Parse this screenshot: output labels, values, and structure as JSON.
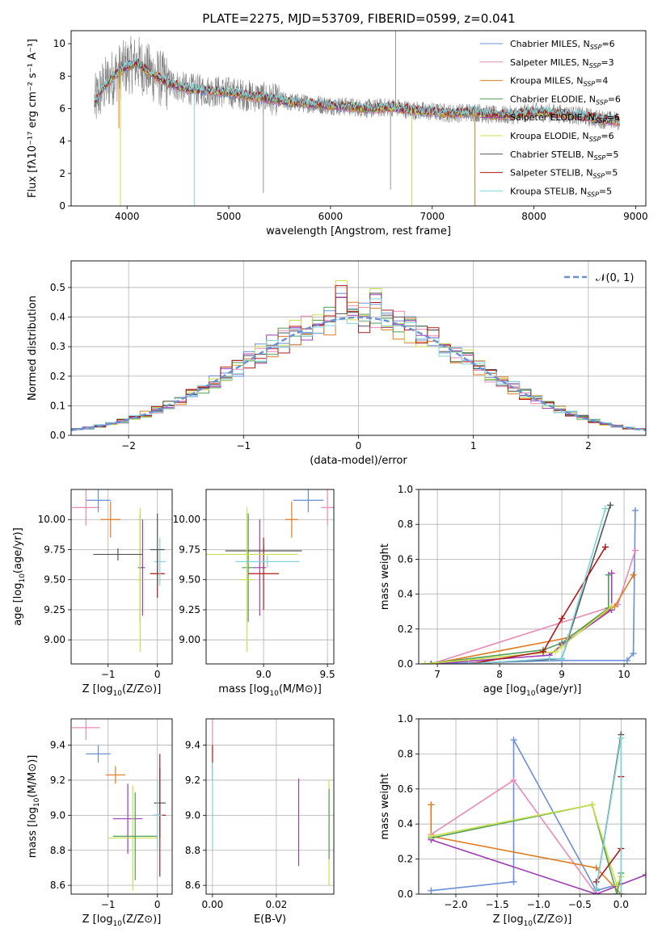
{
  "colors": {
    "chabrier_miles": "#6a8fd8",
    "salpeter_miles": "#e88ab6",
    "kroupa_miles": "#e07b20",
    "chabrier_elodie": "#4d9e57",
    "salpeter_elodie": "#a03cb8",
    "kroupa_elodie": "#c8e04a",
    "chabrier_stelib": "#555555",
    "salpeter_stelib": "#b01a1a",
    "kroupa_stelib": "#7fd4dc",
    "spectrum": "#808080"
  },
  "chart_data": [
    {
      "id": "spectrum",
      "type": "line",
      "title": "PLATE=2275, MJD=53709, FIBERID=0599, z=0.041",
      "xlabel": "wavelength [Angstrom, rest frame]",
      "ylabel": "Flux [fλ10⁻¹⁷ erg cm⁻² s⁻¹ A⁻¹]",
      "xlim": [
        3450,
        9100
      ],
      "ylim": [
        0,
        10.8
      ],
      "xticks": [
        "4000",
        "5000",
        "6000",
        "7000",
        "8000",
        "9000"
      ],
      "yticks": [
        "0",
        "2",
        "4",
        "6",
        "8",
        "10"
      ],
      "legend_position": "top-right",
      "legend": [
        {
          "base": "Chabrier MILES, N",
          "sub": "SSP",
          "tail": "=6",
          "color_key": "chabrier_miles"
        },
        {
          "base": "Salpeter MILES, N",
          "sub": "SSP",
          "tail": "=3",
          "color_key": "salpeter_miles"
        },
        {
          "base": "Kroupa MILES, N",
          "sub": "SSP",
          "tail": "=4",
          "color_key": "kroupa_miles"
        },
        {
          "base": "Chabrier ELODIE, N",
          "sub": "SSP",
          "tail": "=6",
          "color_key": "chabrier_elodie"
        },
        {
          "base": "Salpeter ELODIE, N",
          "sub": "SSP",
          "tail": "=6",
          "color_key": "salpeter_elodie"
        },
        {
          "base": "Kroupa ELODIE, N",
          "sub": "SSP",
          "tail": "=6",
          "color_key": "kroupa_elodie"
        },
        {
          "base": "Chabrier STELIB, N",
          "sub": "SSP",
          "tail": "=5",
          "color_key": "chabrier_stelib"
        },
        {
          "base": "Salpeter STELIB, N",
          "sub": "SSP",
          "tail": "=5",
          "color_key": "salpeter_stelib"
        },
        {
          "base": "Kroupa STELIB, N",
          "sub": "SSP",
          "tail": "=5",
          "color_key": "kroupa_stelib"
        }
      ],
      "continuum": {
        "x": [
          3680,
          3750,
          3850,
          3950,
          4000,
          4100,
          4200,
          4400,
          4600,
          4800,
          5000,
          5200,
          5400,
          5600,
          5800,
          6000,
          6200,
          6400,
          6600,
          6800,
          7000,
          7200,
          7400,
          7600,
          7800,
          8000,
          8200,
          8400,
          8600,
          8840
        ],
        "y": [
          6.3,
          7.2,
          7.9,
          8.4,
          8.6,
          8.8,
          8.3,
          7.6,
          7.2,
          7.1,
          7.0,
          6.8,
          6.6,
          6.4,
          6.3,
          6.2,
          6.1,
          6.0,
          6.1,
          5.9,
          5.8,
          5.7,
          5.8,
          5.6,
          5.6,
          5.8,
          5.7,
          5.6,
          5.4,
          5.2
        ]
      },
      "dips": [
        {
          "x": 3920,
          "y": 4.8,
          "color_key": "kroupa_miles"
        },
        {
          "x": 3935,
          "y": 0,
          "color_key": "kroupa_elodie"
        },
        {
          "x": 4660,
          "y": 0,
          "color_key": "kroupa_stelib"
        },
        {
          "x": 6800,
          "y": 0,
          "color_key": "kroupa_elodie"
        },
        {
          "x": 7420,
          "y": 0,
          "color_key": "kroupa_miles"
        }
      ],
      "spikes": [
        {
          "x": 5340,
          "y": 0.8
        },
        {
          "x": 6640,
          "y": 10.8
        },
        {
          "x": 6590,
          "y": 1.0
        }
      ]
    },
    {
      "id": "residuals",
      "type": "histogram",
      "xlabel": "(data-model)/error",
      "ylabel": "Normed distribution",
      "xlim": [
        -2.5,
        2.5
      ],
      "ylim": [
        0,
        0.59
      ],
      "xticks": [
        "−2",
        "−1",
        "0",
        "1",
        "2"
      ],
      "yticks": [
        "0.0",
        "0.1",
        "0.2",
        "0.3",
        "0.4",
        "0.5"
      ],
      "legend_position": "top-right",
      "gaussian_label": "𝒩(0, 1)",
      "gaussian_color": "#6a8fd8",
      "bin_width": 0.1
    },
    {
      "id": "age_vs_Z",
      "type": "errorbar",
      "xlabel_base": "Z [log",
      "xlabel_sub": "10",
      "xlabel_tail": "(Z/Z⊙)]",
      "ylabel_base": "age  [log",
      "ylabel_sub": "10",
      "ylabel_tail": "(age/yr)]",
      "xlim": [
        -1.75,
        0.3
      ],
      "ylim": [
        8.8,
        10.25
      ],
      "xticks": [
        "−1",
        "0"
      ],
      "yticks": [
        "9.00",
        "9.25",
        "9.50",
        "9.75",
        "10.00"
      ],
      "points": [
        {
          "x": -1.2,
          "y": 10.16,
          "xerr": 0.25,
          "yerr": 0.1,
          "color_key": "chabrier_miles"
        },
        {
          "x": -1.45,
          "y": 10.1,
          "xerr": 0.28,
          "yerr": 0.15,
          "color_key": "salpeter_miles"
        },
        {
          "x": -0.95,
          "y": 10.0,
          "xerr": 0.2,
          "yerr": 0.15,
          "color_key": "kroupa_miles"
        },
        {
          "x": -0.35,
          "y": 9.6,
          "xerr": 0.05,
          "yerr": 0.45,
          "color_key": "chabrier_elodie"
        },
        {
          "x": -0.3,
          "y": 9.6,
          "xerr": 0.05,
          "yerr": 0.4,
          "color_key": "salpeter_elodie"
        },
        {
          "x": -0.35,
          "y": 9.5,
          "xerr": 0.05,
          "yerr": 0.6,
          "color_key": "kroupa_elodie"
        },
        {
          "x": -0.8,
          "y": 9.71,
          "xerr": 0.5,
          "yerr": 0.05,
          "color_key": "chabrier_stelib"
        },
        {
          "x": 0.0,
          "y": 9.55,
          "xerr": 0.15,
          "yerr": 0.2,
          "color_key": "salpeter_stelib"
        },
        {
          "x": 0.05,
          "y": 9.65,
          "xerr": 0.12,
          "yerr": 0.2,
          "color_key": "kroupa_stelib"
        },
        {
          "x": 0.0,
          "y": 9.75,
          "xerr": 0.15,
          "yerr": 0.3,
          "color_key": "chabrier_stelib"
        }
      ]
    },
    {
      "id": "age_vs_mass",
      "type": "errorbar",
      "xlabel_base": "mass [log",
      "xlabel_sub": "10",
      "xlabel_tail": "(M/M⊙)]",
      "xlim": [
        8.55,
        9.55
      ],
      "ylim": [
        8.8,
        10.25
      ],
      "xticks": [
        "9.0",
        "9.5"
      ],
      "yticks": [
        "9.00",
        "9.25",
        "9.50",
        "9.75",
        "10.00"
      ],
      "points": [
        {
          "x": 9.35,
          "y": 10.16,
          "xerr": 0.12,
          "yerr": 0.1,
          "color_key": "chabrier_miles"
        },
        {
          "x": 9.5,
          "y": 10.1,
          "xerr": 0.05,
          "yerr": 0.15,
          "color_key": "salpeter_miles"
        },
        {
          "x": 9.22,
          "y": 10.0,
          "xerr": 0.05,
          "yerr": 0.15,
          "color_key": "kroupa_miles"
        },
        {
          "x": 8.88,
          "y": 9.6,
          "xerr": 0.05,
          "yerr": 0.45,
          "color_key": "chabrier_elodie"
        },
        {
          "x": 8.97,
          "y": 9.6,
          "xerr": 0.05,
          "yerr": 0.4,
          "color_key": "salpeter_elodie"
        },
        {
          "x": 8.87,
          "y": 9.5,
          "xerr": 0.05,
          "yerr": 0.6,
          "color_key": "kroupa_elodie"
        },
        {
          "x": 9.0,
          "y": 9.74,
          "xerr": 0.3,
          "yerr": 0.05,
          "color_key": "chabrier_stelib"
        },
        {
          "x": 9.0,
          "y": 9.55,
          "xerr": 0.12,
          "yerr": 0.3,
          "color_key": "salpeter_stelib"
        },
        {
          "x": 9.03,
          "y": 9.65,
          "xerr": 0.25,
          "yerr": 0.05,
          "color_key": "kroupa_stelib"
        },
        {
          "x": 8.87,
          "y": 9.71,
          "xerr": 0.4,
          "yerr": 0.05,
          "color_key": "kroupa_elodie"
        }
      ]
    },
    {
      "id": "weight_vs_age",
      "type": "line",
      "xlabel_base": "age  [log",
      "xlabel_sub": "10",
      "xlabel_tail": "(age/yr)]",
      "ylabel": "mass weight",
      "xlim": [
        6.7,
        10.35
      ],
      "ylim": [
        0,
        1.0
      ],
      "xticks": [
        "7",
        "8",
        "9",
        "10"
      ],
      "yticks": [
        "0.0",
        "0.2",
        "0.4",
        "0.6",
        "0.8",
        "1.0"
      ],
      "series": [
        {
          "color_key": "chabrier_miles",
          "x": [
            6.9,
            9.0,
            10.05,
            10.15,
            10.18
          ],
          "y": [
            0.0,
            0.02,
            0.02,
            0.06,
            0.88
          ]
        },
        {
          "color_key": "salpeter_miles",
          "x": [
            6.9,
            9.9,
            10.18
          ],
          "y": [
            0.0,
            0.34,
            0.65
          ]
        },
        {
          "color_key": "kroupa_miles",
          "x": [
            6.9,
            9.1,
            9.85,
            10.15
          ],
          "y": [
            0.0,
            0.15,
            0.33,
            0.51
          ]
        },
        {
          "color_key": "chabrier_elodie",
          "x": [
            6.8,
            8.7,
            9.0,
            9.75,
            9.75
          ],
          "y": [
            0.0,
            0.08,
            0.12,
            0.32,
            0.51
          ]
        },
        {
          "color_key": "salpeter_elodie",
          "x": [
            6.9,
            8.8,
            9.0,
            9.8,
            9.8
          ],
          "y": [
            0.0,
            0.05,
            0.11,
            0.31,
            0.52
          ]
        },
        {
          "color_key": "kroupa_elodie",
          "x": [
            6.8,
            8.9,
            9.0,
            9.8
          ],
          "y": [
            0.0,
            0.07,
            0.1,
            0.33
          ]
        },
        {
          "color_key": "chabrier_stelib",
          "x": [
            7.5,
            9.0,
            9.78
          ],
          "y": [
            0.0,
            0.03,
            0.91
          ]
        },
        {
          "color_key": "salpeter_stelib",
          "x": [
            7.5,
            8.7,
            9.0,
            9.7
          ],
          "y": [
            0.0,
            0.07,
            0.26,
            0.67
          ]
        },
        {
          "color_key": "kroupa_stelib",
          "x": [
            7.5,
            8.8,
            9.0,
            9.7
          ],
          "y": [
            0.0,
            0.03,
            0.03,
            0.89
          ]
        }
      ]
    },
    {
      "id": "mass_vs_Z",
      "type": "errorbar",
      "xlabel_base": "Z [log",
      "xlabel_sub": "10",
      "xlabel_tail": "(Z/Z⊙)]",
      "ylabel_base": "mass [log",
      "ylabel_sub": "10",
      "ylabel_tail": "(M/M⊙)]",
      "xlim": [
        -1.75,
        0.3
      ],
      "ylim": [
        8.55,
        9.55
      ],
      "xticks": [
        "−1",
        "0"
      ],
      "yticks": [
        "8.6",
        "8.8",
        "9.0",
        "9.2",
        "9.4"
      ],
      "points": [
        {
          "x": -1.45,
          "y": 9.5,
          "xerr": 0.28,
          "yerr": 0.07,
          "color_key": "salpeter_miles"
        },
        {
          "x": -1.2,
          "y": 9.35,
          "xerr": 0.25,
          "yerr": 0.05,
          "color_key": "chabrier_miles"
        },
        {
          "x": -0.85,
          "y": 9.23,
          "xerr": 0.2,
          "yerr": 0.05,
          "color_key": "kroupa_miles"
        },
        {
          "x": -0.6,
          "y": 8.98,
          "xerr": 0.3,
          "yerr": 0.2,
          "color_key": "salpeter_elodie"
        },
        {
          "x": -0.5,
          "y": 8.87,
          "xerr": 0.5,
          "yerr": 0.3,
          "color_key": "kroupa_elodie"
        },
        {
          "x": -0.45,
          "y": 8.88,
          "xerr": 0.45,
          "yerr": 0.25,
          "color_key": "chabrier_elodie"
        },
        {
          "x": 0.05,
          "y": 9.07,
          "xerr": 0.12,
          "yerr": 0.2,
          "color_key": "chabrier_stelib"
        },
        {
          "x": 0.05,
          "y": 9.0,
          "xerr": 0.12,
          "yerr": 0.35,
          "color_key": "salpeter_stelib"
        },
        {
          "x": 0.0,
          "y": 9.0,
          "xerr": 0.1,
          "yerr": 0.2,
          "color_key": "kroupa_stelib"
        }
      ]
    },
    {
      "id": "mass_vs_ebv",
      "type": "errorbar",
      "xlabel": "E(B-V)",
      "xlim": [
        -0.002,
        0.038
      ],
      "ylim": [
        8.55,
        9.55
      ],
      "xticks": [
        "0.00",
        "0.02"
      ],
      "yticks": [
        "8.6",
        "8.8",
        "9.0",
        "9.2",
        "9.4"
      ],
      "points": [
        {
          "x": 0.0,
          "y": 9.45,
          "xerr": 0,
          "yerr": 0.1,
          "color_key": "salpeter_miles"
        },
        {
          "x": 0.0,
          "y": 9.3,
          "xerr": 0,
          "yerr": 0.1,
          "color_key": "salpeter_stelib"
        },
        {
          "x": 0.0,
          "y": 9.05,
          "xerr": 0,
          "yerr": 0.25,
          "color_key": "kroupa_stelib"
        },
        {
          "x": 0.027,
          "y": 8.96,
          "xerr": 0,
          "yerr": 0.25,
          "color_key": "salpeter_elodie"
        },
        {
          "x": 0.0365,
          "y": 8.9,
          "xerr": 0,
          "yerr": 0.3,
          "color_key": "kroupa_elodie"
        },
        {
          "x": 0.0365,
          "y": 8.95,
          "xerr": 0,
          "yerr": 0.2,
          "color_key": "chabrier_elodie"
        }
      ]
    },
    {
      "id": "weight_vs_Z",
      "type": "line",
      "xlabel_base": "Z [log",
      "xlabel_sub": "10",
      "xlabel_tail": "(Z/Z⊙)]",
      "ylabel": "mass weight",
      "xlim": [
        -2.45,
        0.3
      ],
      "ylim": [
        0,
        1.0
      ],
      "xticks": [
        "−2.0",
        "−1.5",
        "−1.0",
        "−0.5",
        "0.0"
      ],
      "yticks": [
        "0.0",
        "0.2",
        "0.4",
        "0.6",
        "0.8",
        "1.0"
      ],
      "series": [
        {
          "color_key": "chabrier_miles",
          "x": [
            -2.3,
            -1.3,
            -1.3,
            -0.3,
            0.0
          ],
          "y": [
            0.02,
            0.07,
            0.88,
            0.02,
            0.06
          ]
        },
        {
          "color_key": "salpeter_miles",
          "x": [
            -2.3,
            -1.3,
            -0.3,
            0.0
          ],
          "y": [
            0.34,
            0.65,
            0.0,
            0.0
          ]
        },
        {
          "color_key": "kroupa_miles",
          "x": [
            -2.3,
            -2.3,
            -0.3,
            0.0
          ],
          "y": [
            0.51,
            0.33,
            0.15,
            0.0
          ]
        },
        {
          "color_key": "chabrier_elodie",
          "x": [
            -2.3,
            -0.35,
            -0.05,
            0.0
          ],
          "y": [
            0.32,
            0.51,
            0.0,
            0.12
          ]
        },
        {
          "color_key": "salpeter_elodie",
          "x": [
            -2.3,
            -0.3,
            0.3
          ],
          "y": [
            0.31,
            0.0,
            0.11
          ]
        },
        {
          "color_key": "kroupa_elodie",
          "x": [
            -2.3,
            -0.35,
            -0.05,
            0.0
          ],
          "y": [
            0.33,
            0.51,
            0.05,
            0.1
          ]
        },
        {
          "color_key": "chabrier_stelib",
          "x": [
            -0.3,
            0.0,
            0.0
          ],
          "y": [
            0.03,
            0.91,
            0.0
          ]
        },
        {
          "color_key": "salpeter_stelib",
          "x": [
            -0.3,
            0.0,
            0.0
          ],
          "y": [
            0.07,
            0.26,
            0.67
          ]
        },
        {
          "color_key": "kroupa_stelib",
          "x": [
            -0.3,
            0.0,
            0.0
          ],
          "y": [
            0.03,
            0.89,
            0.0
          ]
        }
      ]
    }
  ]
}
